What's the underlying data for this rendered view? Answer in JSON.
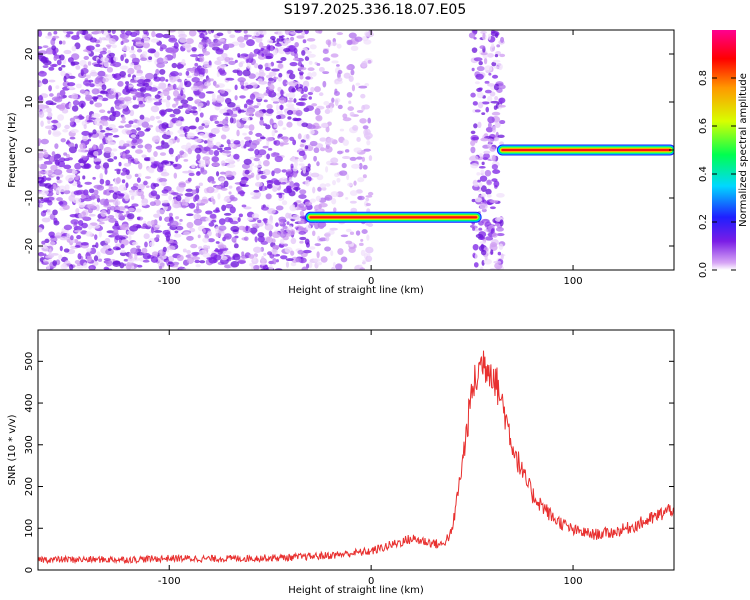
{
  "title": "S197.2025.336.18.07.E05",
  "colors": {
    "line": "#e8302f",
    "speckle": "#7a1de6",
    "background": "#ffffff"
  },
  "chart_data": [
    {
      "type": "heatmap",
      "xlabel": "Height of straight line (km)",
      "ylabel": "Frequency (Hz)",
      "xlim": [
        -165,
        150
      ],
      "ylim": [
        -25,
        25
      ],
      "xticks": [
        "-100",
        "0",
        "100"
      ],
      "yticks": [
        "-20",
        "-10",
        "0",
        "10",
        "20"
      ],
      "grid": false,
      "colorbar": {
        "label": "Normalized spectral amplitude",
        "range": [
          0,
          1
        ],
        "ticks": [
          "0.0",
          "0.2",
          "0.4",
          "0.6",
          "0.8"
        ],
        "colormap": "white-magenta-blue-cyan-green-yellow-red-magenta"
      },
      "features": [
        {
          "name": "noise",
          "x_range": [
            -165,
            -30
          ],
          "y_range": [
            -25,
            25
          ],
          "amplitude": 0.1
        },
        {
          "name": "noise",
          "x_range": [
            -30,
            0
          ],
          "y_range": [
            -25,
            25
          ],
          "amplitude": 0.05
        },
        {
          "name": "noise",
          "x_range": [
            50,
            65
          ],
          "y_range": [
            -25,
            25
          ],
          "amplitude": 0.1
        },
        {
          "name": "track",
          "x_range": [
            -30,
            52
          ],
          "frequency": -14,
          "amplitude": 0.9
        },
        {
          "name": "track",
          "x_range": [
            65,
            148
          ],
          "frequency": 0,
          "amplitude": 1.0
        }
      ]
    },
    {
      "type": "line",
      "xlabel": "Height of straight line (km)",
      "ylabel": "SNR (10 * v/v)",
      "xlim": [
        -165,
        150
      ],
      "ylim": [
        0,
        575
      ],
      "xticks": [
        "-100",
        "0",
        "100"
      ],
      "yticks": [
        "0",
        "100",
        "200",
        "300",
        "400",
        "500"
      ],
      "grid": false,
      "series": [
        {
          "x": [
            -165,
            -140,
            -120,
            -100,
            -80,
            -60,
            -40,
            -20,
            0,
            10,
            20,
            30,
            35,
            40,
            45,
            50,
            55,
            60,
            65,
            70,
            75,
            80,
            90,
            100,
            110,
            120,
            130,
            140,
            150
          ],
          "y": [
            25,
            25,
            25,
            28,
            27,
            28,
            30,
            35,
            45,
            60,
            75,
            65,
            60,
            90,
            250,
            430,
            500,
            480,
            400,
            300,
            230,
            180,
            125,
            95,
            85,
            90,
            105,
            125,
            150
          ]
        }
      ]
    }
  ]
}
